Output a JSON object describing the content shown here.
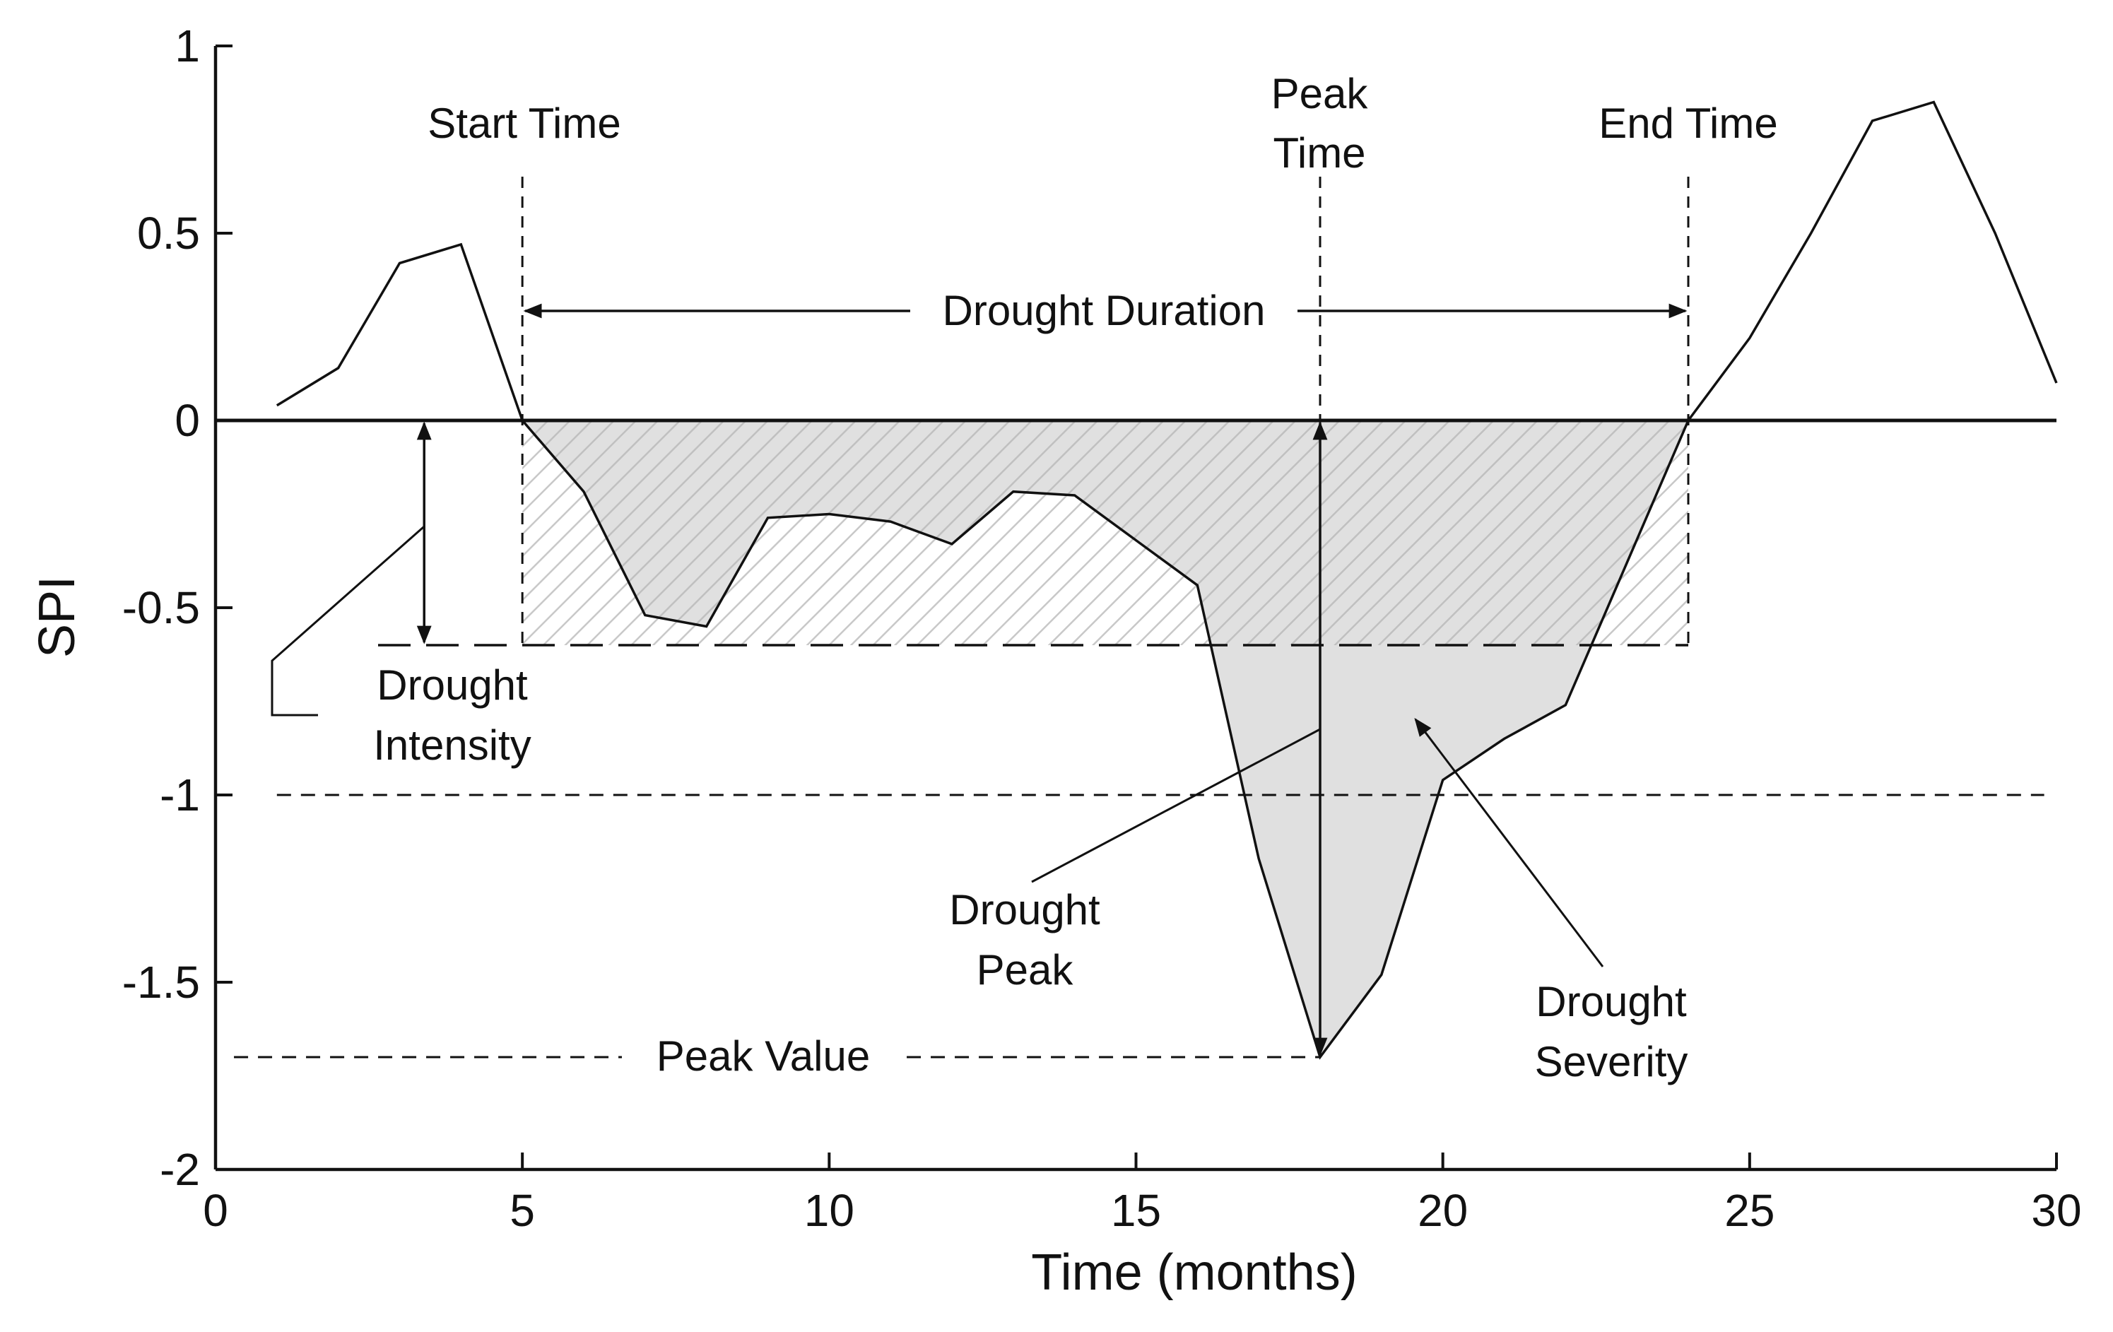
{
  "chart_data": {
    "type": "line",
    "title": "",
    "xlabel": "Time (months)",
    "ylabel": "SPI",
    "xlim": [
      0,
      30
    ],
    "ylim": [
      -2,
      1
    ],
    "xticks": [
      "0",
      "5",
      "10",
      "15",
      "20",
      "25",
      "30"
    ],
    "yticks": [
      "1",
      "0.5",
      "0",
      "-0.5",
      "-1",
      "-1.5",
      "-2"
    ],
    "series": [
      {
        "name": "SPI",
        "x": [
          1,
          2,
          3,
          4,
          5,
          6,
          7,
          8,
          9,
          10,
          11,
          12,
          13,
          14,
          15,
          16,
          17,
          18,
          19,
          20,
          21,
          22,
          23,
          24,
          25,
          26,
          27,
          28,
          29,
          30
        ],
        "values": [
          0.04,
          0.14,
          0.42,
          0.47,
          0.0,
          -0.19,
          -0.52,
          -0.55,
          -0.26,
          -0.25,
          -0.27,
          -0.33,
          -0.19,
          -0.2,
          -0.32,
          -0.44,
          -1.17,
          -1.7,
          -1.48,
          -0.96,
          -0.85,
          -0.76,
          -0.38,
          0.0,
          0.22,
          0.5,
          0.8,
          0.85,
          0.5,
          0.1
        ]
      }
    ],
    "threshold_levels": {
      "intensity": -0.6,
      "minus_one": -1.0,
      "peak_value": -1.7
    },
    "event": {
      "start_time": 5,
      "peak_time": 18,
      "end_time": 24
    },
    "annotations": {
      "start_time": "Start Time",
      "peak_time_line1": "Peak",
      "peak_time_line2": "Time",
      "end_time": "End Time",
      "drought_duration": "Drought Duration",
      "drought_intensity_line1": "Drought",
      "drought_intensity_line2": "Intensity",
      "drought_peak_line1": "Drought",
      "drought_peak_line2": "Peak",
      "drought_severity_line1": "Drought",
      "drought_severity_line2": "Severity",
      "peak_value": "Peak Value"
    }
  }
}
